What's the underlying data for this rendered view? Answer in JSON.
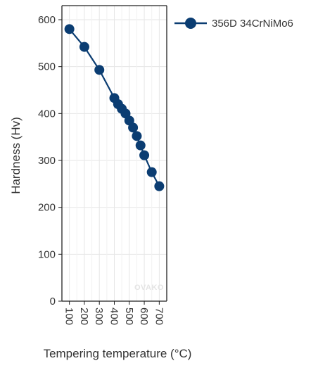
{
  "chart_data": {
    "type": "line",
    "xlabel": "Tempering temperature (°C)",
    "ylabel": "Hardness (Hv)",
    "xlim": [
      50,
      750
    ],
    "ylim": [
      0,
      630
    ],
    "x_ticks": [
      100,
      200,
      300,
      400,
      500,
      600,
      700
    ],
    "y_ticks": [
      0,
      100,
      200,
      300,
      400,
      500,
      600
    ],
    "grid": true,
    "legend_position": "right",
    "watermark": "OVAKO",
    "series": [
      {
        "name": "356D 34CrNiMo6",
        "color": "#0b3d72",
        "marker": "circle",
        "x": [
          100,
          200,
          300,
          400,
          425,
          450,
          475,
          500,
          525,
          550,
          575,
          600,
          650,
          700
        ],
        "y": [
          580,
          542,
          493,
          433,
          420,
          410,
          400,
          385,
          370,
          352,
          332,
          311,
          275,
          245
        ]
      }
    ]
  }
}
